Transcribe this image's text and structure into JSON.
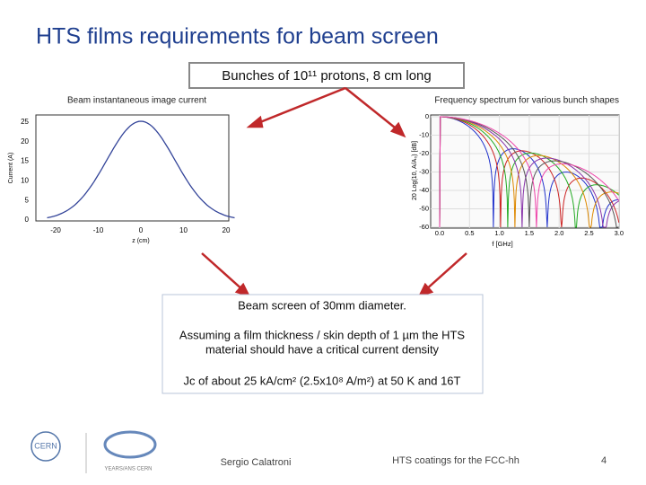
{
  "header": {
    "title": "HTS  films requirements for beam screen",
    "bunch_box": "Bunches of 10¹¹ protons, 8 cm long"
  },
  "left_plot": {
    "caption": "Beam instantaneous image current",
    "ylabel": "Current (A)",
    "xlabel": "z (cm)",
    "yticks": [
      "0",
      "5",
      "10",
      "15",
      "20",
      "25"
    ],
    "xticks": [
      "-20",
      "-10",
      "0",
      "10",
      "20"
    ]
  },
  "right_plot": {
    "caption": "Frequency spectrum  for various bunch shapes",
    "ylabel": "20 Log(10, A/A₀) [dB]",
    "xlabel": "f [GHz]",
    "yticks": [
      "0",
      "-10",
      "-20",
      "-30",
      "-40",
      "-50",
      "-60"
    ],
    "xticks": [
      "0.0",
      "0.5",
      "1.0",
      "1.5",
      "2.0",
      "2.5",
      "3.0"
    ]
  },
  "info_box": {
    "lines": [
      "Beam screen of 30mm diameter.",
      "Assuming a film thickness / skin depth of 1 µm the HTS",
      "material should have a critical current density",
      "Jc of about 25 kA/cm² (2.5x10⁸ A/m²) at 50 K and 16T"
    ]
  },
  "footer": {
    "logo_text": "CERN",
    "anniversary": "YEARS/ANS CERN",
    "author": "Sergio Calatroni",
    "talk": "HTS coatings for the FCC-hh",
    "page": "4"
  }
}
